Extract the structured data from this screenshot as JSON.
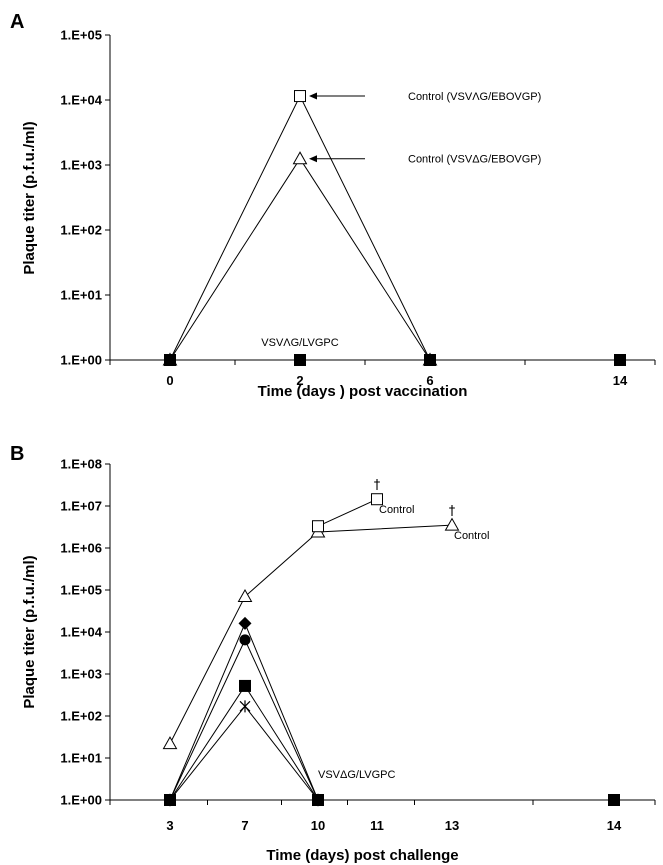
{
  "chart_data": [
    {
      "panel": "A",
      "type": "line",
      "ylabel": "Plaque titer (p.f.u./ml)",
      "xlabel": "Time (days ) post vaccination",
      "yscale": "log",
      "ylim": [
        1,
        100000
      ],
      "ytick_labels": [
        "1.E+00",
        "1.E+01",
        "1.E+02",
        "1.E+03",
        "1.E+04",
        "1.E+05"
      ],
      "categories": [
        "0",
        "2",
        "6",
        "14"
      ],
      "series": [
        {
          "marker": "open-square",
          "values": [
            1,
            11500,
            1,
            null
          ]
        },
        {
          "marker": "open-triangle",
          "values": [
            1,
            1250,
            1,
            null
          ]
        },
        {
          "marker": "filled-square",
          "values": [
            1,
            1,
            1,
            1
          ]
        }
      ],
      "annotations": [
        {
          "text": "Control (VSVΛG/EBOVGP)",
          "x": "2",
          "y": 11500,
          "arrow": true
        },
        {
          "text": "Control (VSVΔG/EBOVGP)",
          "x": "2",
          "y": 1250,
          "arrow": true
        },
        {
          "text": "VSVΛG/LVGPC",
          "x": "2",
          "y": 1.9,
          "arrow": false
        }
      ]
    },
    {
      "panel": "B",
      "type": "line",
      "ylabel": "Plaque titer (p.f.u./ml)",
      "xlabel": "Time (days) post challenge",
      "yscale": "log",
      "ylim": [
        1,
        100000000
      ],
      "ytick_labels": [
        "1.E+00",
        "1.E+01",
        "1.E+02",
        "1.E+03",
        "1.E+04",
        "1.E+05",
        "1.E+06",
        "1.E+07",
        "1.E+08"
      ],
      "categories": [
        "3",
        "7",
        "10",
        "11",
        "13",
        "14"
      ],
      "series": [
        {
          "marker": "open-triangle",
          "values": [
            22,
            70000,
            2400000,
            null,
            3500000,
            null
          ]
        },
        {
          "marker": "open-square",
          "values": [
            null,
            null,
            3300000,
            14500000,
            null,
            null
          ]
        },
        {
          "marker": "filled-diamond",
          "values": [
            1,
            16000,
            1,
            null,
            null,
            null
          ]
        },
        {
          "marker": "filled-circle",
          "values": [
            1,
            6500,
            1,
            null,
            null,
            null
          ]
        },
        {
          "marker": "filled-square",
          "values": [
            1,
            520,
            1,
            null,
            null,
            1
          ]
        },
        {
          "marker": "star",
          "values": [
            1,
            170,
            1,
            null,
            null,
            null
          ]
        }
      ],
      "annotations": [
        {
          "text": "Control",
          "x": "11",
          "y": 14500000,
          "dagger": true
        },
        {
          "text": "Control",
          "x": "13",
          "y": 3500000,
          "dagger": true
        },
        {
          "text": "VSVΔG/LVGPC",
          "x": "10",
          "y": 4.2,
          "dagger": false
        }
      ],
      "dagger_symbol": "†"
    }
  ]
}
